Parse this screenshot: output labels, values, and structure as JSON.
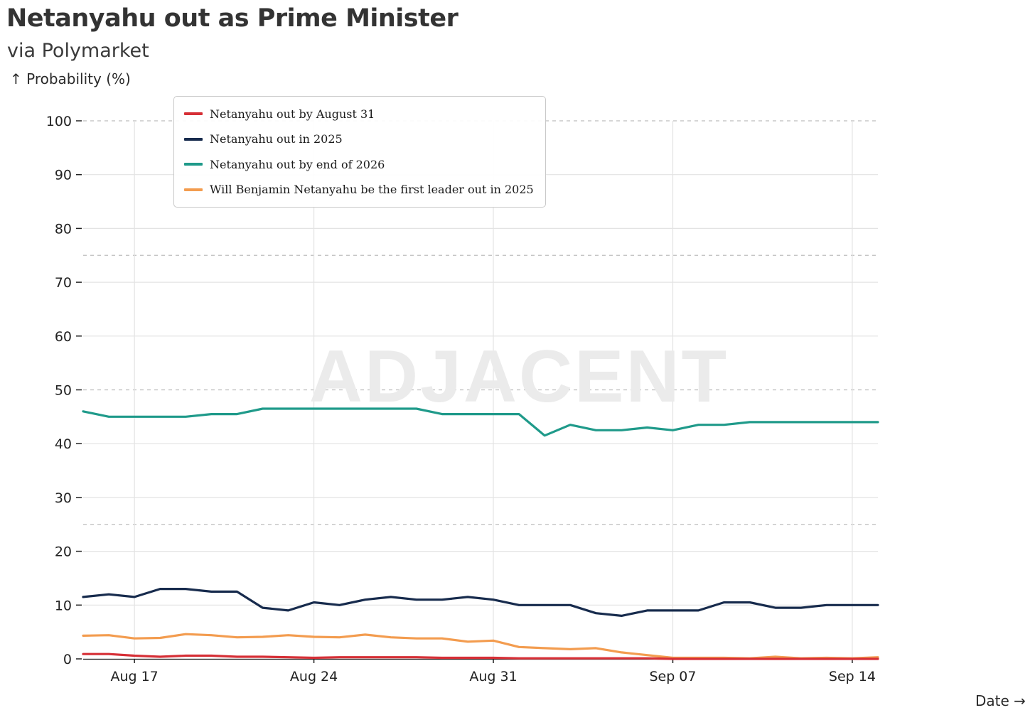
{
  "title": "Netanyahu out as Prime Minister",
  "subtitle": "via Polymarket",
  "watermark": "ADJACENT",
  "chart_data": {
    "type": "line",
    "ylabel": "↑ Probability (%)",
    "xlabel": "Date →",
    "ylim": [
      0,
      100
    ],
    "yticks": [
      0,
      10,
      20,
      30,
      40,
      50,
      60,
      70,
      80,
      90,
      100
    ],
    "dashed_gridlines": [
      25,
      50,
      75,
      100
    ],
    "x_start": "Aug 15",
    "x_end": "Sep 14",
    "xticks": [
      {
        "label": "Aug 17",
        "day": 2
      },
      {
        "label": "Aug 24",
        "day": 9
      },
      {
        "label": "Aug 31",
        "day": 16
      },
      {
        "label": "Sep 07",
        "day": 23
      },
      {
        "label": "Sep 14",
        "day": 30
      }
    ],
    "x_days": [
      0,
      1,
      2,
      3,
      4,
      5,
      6,
      7,
      8,
      9,
      10,
      11,
      12,
      13,
      14,
      15,
      16,
      17,
      18,
      19,
      20,
      21,
      22,
      23,
      24,
      25,
      26,
      27,
      28,
      29,
      30,
      31
    ],
    "series": [
      {
        "name": "Netanyahu out by August 31",
        "color": "#d62f36",
        "values": [
          0.9,
          0.9,
          0.6,
          0.4,
          0.6,
          0.6,
          0.4,
          0.4,
          0.3,
          0.2,
          0.3,
          0.3,
          0.3,
          0.3,
          0.2,
          0.2,
          0.2,
          0.1,
          0.1,
          0.1,
          0.1,
          0.1,
          0.1,
          0.0,
          0.0,
          0.0,
          0.0,
          0.0,
          0.0,
          0.0,
          0.0,
          0.0
        ]
      },
      {
        "name": "Netanyahu out in 2025",
        "color": "#172b4d",
        "values": [
          11.5,
          12,
          11.5,
          13,
          13,
          12.5,
          12.5,
          9.5,
          9,
          10.5,
          10,
          11,
          11.5,
          11,
          11,
          11.5,
          11,
          10,
          10,
          10,
          8.5,
          8,
          9,
          9,
          9,
          10.5,
          10.5,
          9.5,
          9.5,
          10,
          10,
          10
        ]
      },
      {
        "name": "Netanyahu out by end of 2026",
        "color": "#1f9a8a",
        "values": [
          46,
          45,
          45,
          45,
          45,
          45.5,
          45.5,
          46.5,
          46.5,
          46.5,
          46.5,
          46.5,
          46.5,
          46.5,
          45.5,
          45.5,
          45.5,
          45.5,
          41.5,
          43.5,
          42.5,
          42.5,
          43,
          42.5,
          43.5,
          43.5,
          44,
          44,
          44,
          44,
          44,
          44
        ]
      },
      {
        "name": "Will Benjamin Netanyahu be the first leader out in 2025",
        "color": "#f39c4f",
        "values": [
          4.3,
          4.4,
          3.8,
          3.9,
          4.6,
          4.4,
          4.0,
          4.1,
          4.4,
          4.1,
          4.0,
          4.5,
          4.0,
          3.8,
          3.8,
          3.2,
          3.4,
          2.2,
          2.0,
          1.8,
          2.0,
          1.2,
          0.7,
          0.2,
          0.2,
          0.2,
          0.1,
          0.4,
          0.1,
          0.2,
          0.1,
          0.3
        ]
      }
    ]
  }
}
